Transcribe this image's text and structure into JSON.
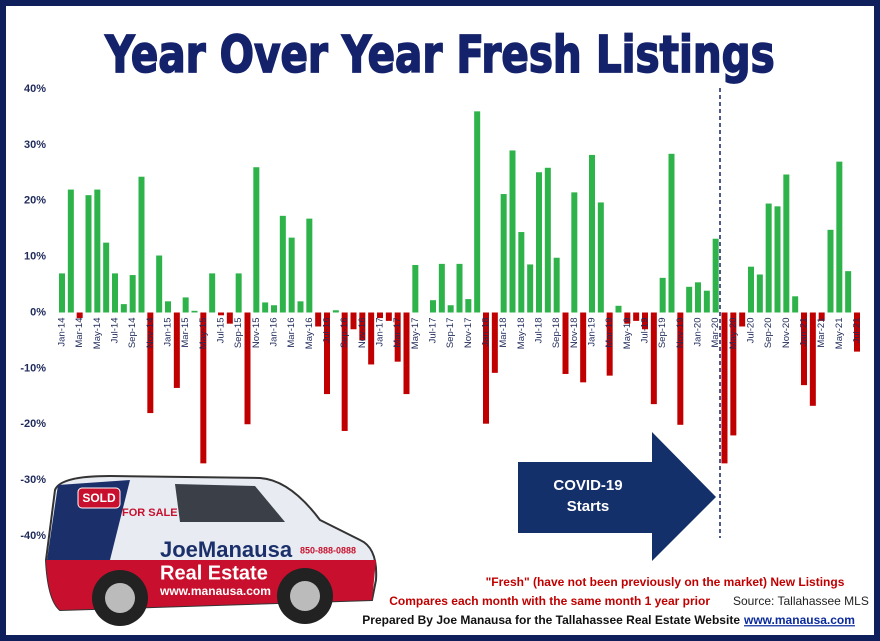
{
  "chart_data": {
    "type": "bar",
    "title": "Year Over Year Fresh Listings",
    "categories": [
      "Jan-14",
      null,
      "Mar-14",
      null,
      "May-14",
      null,
      "Jul-14",
      null,
      "Sep-14",
      null,
      "Nov-14",
      null,
      "Jan-15",
      null,
      "Mar-15",
      null,
      "May-15",
      null,
      "Jul-15",
      null,
      "Sep-15",
      null,
      "Nov-15",
      null,
      "Jan-16",
      null,
      "Mar-16",
      null,
      "May-16",
      null,
      "Jul-16",
      null,
      "Sep-16",
      null,
      "Nov-16",
      null,
      "Jan-17",
      null,
      "Mar-17",
      null,
      "May-17",
      null,
      "Jul-17",
      null,
      "Sep-17",
      null,
      "Nov-17",
      null,
      "Jan-18",
      null,
      "Mar-18",
      null,
      "May-18",
      null,
      "Jul-18",
      null,
      "Sep-18",
      null,
      "Nov-18",
      null,
      "Jan-19",
      null,
      "Mar-19",
      null,
      "May-19",
      null,
      "Jul-19",
      null,
      "Sep-19",
      null,
      "Nov-19",
      null,
      "Jan-20",
      null,
      "Mar-20",
      null,
      "May-20",
      null,
      "Jul-20",
      null,
      "Sep-20",
      null,
      "Nov-20",
      null,
      "Jan-21",
      null,
      "Mar-21",
      null,
      "May-21",
      null,
      "Jul-21"
    ],
    "values": [
      7,
      22,
      -1,
      21,
      22,
      12.5,
      7,
      1.5,
      6.7,
      24.3,
      -18,
      10.2,
      2,
      -13.5,
      2.7,
      0.3,
      -27,
      7,
      -0.5,
      -2,
      7,
      -20,
      26,
      1.8,
      1.3,
      17.3,
      13.4,
      2,
      16.8,
      -2.5,
      -14.6,
      0.4,
      -21.2,
      -3,
      -5,
      -9.3,
      -1,
      -1.5,
      -8.8,
      -14.6,
      8.5,
      0,
      2.2,
      8.7,
      1.3,
      8.7,
      2.4,
      36,
      -19.9,
      -10.8,
      21.2,
      29,
      14.4,
      8.6,
      25.1,
      25.9,
      9.8,
      -11,
      21.5,
      -12.5,
      28.2,
      19.7,
      -11.3,
      1.2,
      -2,
      -1.5,
      -3,
      -16.4,
      6.2,
      28.4,
      -20.1,
      4.6,
      5.4,
      3.9,
      13.2,
      -27,
      -22,
      -2.5,
      8.2,
      6.8,
      19.5,
      19,
      24.7,
      2.9,
      -13,
      -16.7,
      -1.5,
      14.8,
      27,
      7.4,
      -7
    ],
    "positive_color": "#2db34a",
    "negative_color": "#c00000",
    "ylim": [
      -40,
      40
    ],
    "yticks": [
      {
        "value": -40,
        "label": "-40%"
      },
      {
        "value": -30,
        "label": "-30%"
      },
      {
        "value": -20,
        "label": "-20%"
      },
      {
        "value": -10,
        "label": "-10%"
      },
      {
        "value": 0,
        "label": "0%"
      },
      {
        "value": 10,
        "label": "10%"
      },
      {
        "value": 20,
        "label": "20%"
      },
      {
        "value": 30,
        "label": "30%"
      },
      {
        "value": 40,
        "label": "40%"
      }
    ],
    "annotation": [
      "COVID-19",
      "Starts"
    ],
    "notes": [
      "\"Fresh\" (have not been previously on the market) New Listings",
      "Compares each month with the same month 1 year prior"
    ],
    "source": "Source: Tallahassee MLS",
    "credit": "Prepared By Joe Manausa for the Tallahassee Real Estate Website",
    "website": "www.manausa.com",
    "logo": {
      "sold": "SOLD",
      "for_sale": "FOR SALE",
      "name": "JoeManausa",
      "sub": "Real Estate",
      "url": "www.manausa.com",
      "phone": "850-888-0888"
    }
  }
}
